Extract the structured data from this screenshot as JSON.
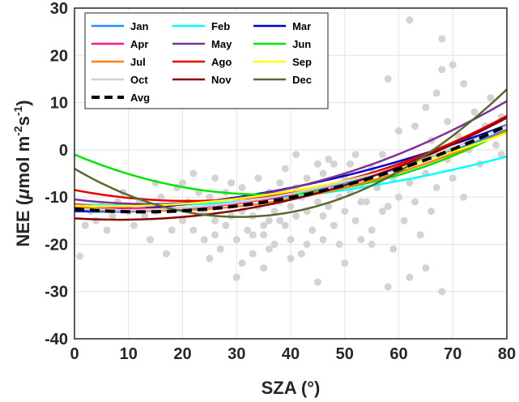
{
  "chart_data": {
    "type": "scatter",
    "title": "",
    "xlabel": "SZA (°)",
    "ylabel": "NEE (μmol m⁻²s⁻¹)",
    "ylabel_parts": {
      "main": "NEE (",
      "mu": "μ",
      "mid": "mol m",
      "exp1": "-2",
      "s": "s",
      "exp2": "-1",
      "close": ")"
    },
    "xlim": [
      0,
      80
    ],
    "ylim": [
      -40,
      30
    ],
    "xticks": [
      "0",
      "10",
      "20",
      "30",
      "40",
      "50",
      "60",
      "70",
      "80"
    ],
    "yticks": [
      "-40",
      "-30",
      "-20",
      "-10",
      "0",
      "10",
      "20",
      "30"
    ],
    "grid": true,
    "legend_position": "top-left",
    "scatter_color": "#d3d3d3",
    "scatter": [
      [
        1,
        -22.5
      ],
      [
        2,
        -16
      ],
      [
        3,
        -13
      ],
      [
        4,
        -15
      ],
      [
        5,
        -12
      ],
      [
        6,
        -17
      ],
      [
        7,
        -14
      ],
      [
        8,
        -11
      ],
      [
        9,
        -9
      ],
      [
        10,
        -13
      ],
      [
        11,
        -16
      ],
      [
        12,
        -11
      ],
      [
        13,
        -14
      ],
      [
        14,
        -19
      ],
      [
        15,
        -13
      ],
      [
        16,
        -10
      ],
      [
        17,
        -22
      ],
      [
        18,
        -12
      ],
      [
        19,
        -8
      ],
      [
        20,
        -15
      ],
      [
        20,
        -7
      ],
      [
        21,
        -11
      ],
      [
        22,
        -17
      ],
      [
        23,
        -9
      ],
      [
        24,
        -13
      ],
      [
        24,
        -19
      ],
      [
        25,
        -10
      ],
      [
        26,
        -15
      ],
      [
        26,
        -6
      ],
      [
        27,
        -12
      ],
      [
        27,
        -21
      ],
      [
        28,
        -9
      ],
      [
        28,
        -16
      ],
      [
        29,
        -14
      ],
      [
        29,
        -7
      ],
      [
        30,
        -11
      ],
      [
        30,
        -19
      ],
      [
        31,
        -13
      ],
      [
        31,
        -8
      ],
      [
        32,
        -17
      ],
      [
        32,
        -10
      ],
      [
        33,
        -22
      ],
      [
        33,
        -14
      ],
      [
        34,
        -6
      ],
      [
        34,
        -12
      ],
      [
        35,
        -18
      ],
      [
        35,
        -25
      ],
      [
        36,
        -9
      ],
      [
        36,
        -15
      ],
      [
        37,
        -13
      ],
      [
        37,
        -20
      ],
      [
        38,
        -7
      ],
      [
        38,
        -11
      ],
      [
        39,
        -16
      ],
      [
        39,
        -4
      ],
      [
        40,
        -12
      ],
      [
        40,
        -19
      ],
      [
        41,
        -8
      ],
      [
        41,
        -14
      ],
      [
        42,
        -10
      ],
      [
        42,
        -22
      ],
      [
        43,
        -6
      ],
      [
        43,
        -13
      ],
      [
        44,
        -17
      ],
      [
        44,
        -9
      ],
      [
        45,
        -11
      ],
      [
        45,
        -28
      ],
      [
        46,
        -5
      ],
      [
        46,
        -14
      ],
      [
        47,
        -12
      ],
      [
        47,
        -2
      ],
      [
        48,
        -8
      ],
      [
        48,
        -16
      ],
      [
        49,
        -10
      ],
      [
        49,
        -20
      ],
      [
        50,
        -6
      ],
      [
        50,
        -13
      ],
      [
        51,
        -9
      ],
      [
        51,
        -3
      ],
      [
        52,
        -15
      ],
      [
        53,
        -7
      ],
      [
        53,
        -19
      ],
      [
        54,
        -11
      ],
      [
        55,
        -4
      ],
      [
        55,
        -17
      ],
      [
        56,
        -8
      ],
      [
        57,
        -13
      ],
      [
        57,
        -1
      ],
      [
        58,
        15
      ],
      [
        58,
        -29
      ],
      [
        59,
        -6
      ],
      [
        59,
        -21
      ],
      [
        60,
        -10
      ],
      [
        60,
        4
      ],
      [
        61,
        -3
      ],
      [
        61,
        -15
      ],
      [
        62,
        27.5
      ],
      [
        62,
        -7
      ],
      [
        63,
        -11
      ],
      [
        63,
        5
      ],
      [
        64,
        -2
      ],
      [
        64,
        -18
      ],
      [
        65,
        9
      ],
      [
        65,
        -5
      ],
      [
        66,
        2
      ],
      [
        66,
        -13
      ],
      [
        67,
        -8
      ],
      [
        67,
        12
      ],
      [
        68,
        23.5
      ],
      [
        68,
        -30
      ],
      [
        69,
        6
      ],
      [
        69,
        -2
      ],
      [
        70,
        18
      ],
      [
        70,
        -6
      ],
      [
        71,
        3
      ],
      [
        72,
        14
      ],
      [
        72,
        -10
      ],
      [
        73,
        0
      ],
      [
        74,
        8
      ],
      [
        75,
        -3
      ],
      [
        76,
        5
      ],
      [
        77,
        11
      ],
      [
        78,
        1
      ],
      [
        79,
        -1
      ],
      [
        79,
        7
      ],
      [
        15,
        -7
      ],
      [
        25,
        -23
      ],
      [
        35,
        -16
      ],
      [
        45,
        -3
      ],
      [
        55,
        -20
      ],
      [
        18,
        -17
      ],
      [
        22,
        -5
      ],
      [
        30,
        -27
      ],
      [
        40,
        -23
      ],
      [
        50,
        -24
      ],
      [
        65,
        -25
      ],
      [
        68,
        17
      ],
      [
        52,
        -1
      ],
      [
        58,
        -12
      ],
      [
        62,
        -27
      ],
      [
        26,
        -18
      ],
      [
        31,
        -24
      ],
      [
        36,
        -21
      ],
      [
        41,
        -1
      ],
      [
        46,
        -19
      ],
      [
        33,
        -18
      ],
      [
        38,
        -15
      ],
      [
        43,
        -20
      ],
      [
        48,
        -3
      ],
      [
        53,
        -11
      ]
    ],
    "series": [
      {
        "name": "Jan",
        "color": "#1e90ff",
        "coef": [
          0.0032,
          -0.04,
          -13
        ]
      },
      {
        "name": "Feb",
        "color": "#00ffff",
        "coef": [
          0.0022,
          -0.05,
          -11.5
        ]
      },
      {
        "name": "Mar",
        "color": "#0000cd",
        "coef": [
          0.0026,
          0.02,
          -13
        ]
      },
      {
        "name": "Apr",
        "color": "#ff1493",
        "coef": [
          0.0045,
          -0.13,
          -11.5
        ]
      },
      {
        "name": "May",
        "color": "#7b3294",
        "coef": [
          0.005,
          -0.14,
          -10.5
        ]
      },
      {
        "name": "Jun",
        "color": "#00e600",
        "coef": [
          0.0068,
          -0.48,
          -1
        ]
      },
      {
        "name": "Jul",
        "color": "#ff7f0e",
        "coef": [
          0.004,
          -0.12,
          -12
        ]
      },
      {
        "name": "Ago",
        "color": "#e60000",
        "coef": [
          0.0052,
          -0.22,
          -8.5
        ]
      },
      {
        "name": "Sep",
        "color": "#ffff00",
        "coef": [
          0.0029,
          -0.04,
          -11.8
        ]
      },
      {
        "name": "Oct",
        "color": "#d0d0d0",
        "coef": [
          0.0035,
          -0.06,
          -12.5
        ]
      },
      {
        "name": "Nov",
        "color": "#8b0000",
        "coef": [
          0.0042,
          -0.07,
          -14.5
        ]
      },
      {
        "name": "Dec",
        "color": "#556b2f",
        "coef": [
          0.011,
          -0.67,
          -4
        ]
      },
      {
        "name": "Avg",
        "color": "#000000",
        "coef": [
          0.004,
          -0.1,
          -12.5
        ],
        "dashed": true
      }
    ]
  }
}
